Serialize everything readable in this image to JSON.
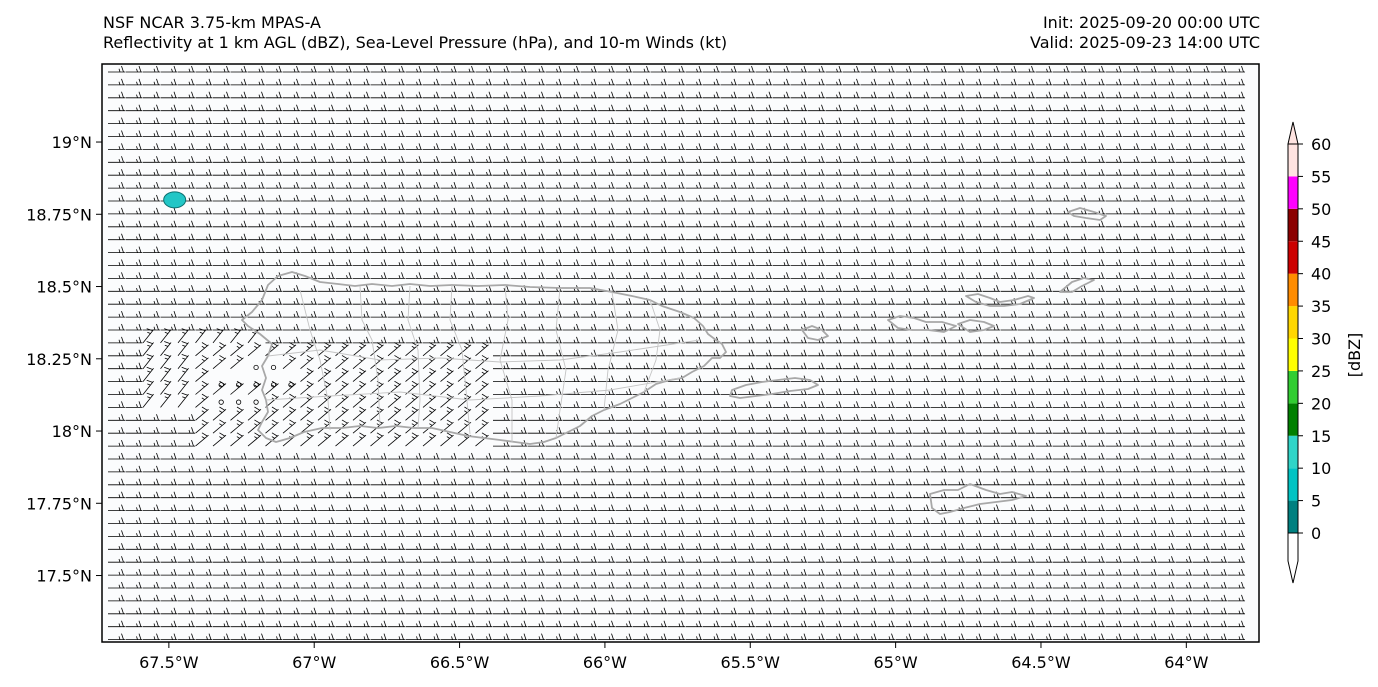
{
  "title": {
    "left_line1": "NSF NCAR 3.75-km MPAS-A",
    "left_line2": "Reflectivity at 1 km AGL (dBZ), Sea-Level Pressure (hPa), and 10-m Winds (kt)",
    "right_line1": "Init: 2025-09-20 00:00 UTC",
    "right_line2": "Valid: 2025-09-23 14:00 UTC"
  },
  "map": {
    "lon_range": [
      -67.73,
      -63.75
    ],
    "lat_range": [
      17.27,
      19.27
    ],
    "x_ticks": [
      {
        "value": -67.5,
        "label": "67.5°W"
      },
      {
        "value": -67.0,
        "label": "67°W"
      },
      {
        "value": -66.5,
        "label": "66.5°W"
      },
      {
        "value": -66.0,
        "label": "66°W"
      },
      {
        "value": -65.5,
        "label": "65.5°W"
      },
      {
        "value": -65.0,
        "label": "65°W"
      },
      {
        "value": -64.5,
        "label": "64.5°W"
      },
      {
        "value": -64.0,
        "label": "64°W"
      }
    ],
    "y_ticks": [
      {
        "value": 19.0,
        "label": "19°N"
      },
      {
        "value": 18.75,
        "label": "18.75°N"
      },
      {
        "value": 18.5,
        "label": "18.5°N"
      },
      {
        "value": 18.25,
        "label": "18.25°N"
      },
      {
        "value": 18.0,
        "label": "18°N"
      },
      {
        "value": 17.75,
        "label": "17.75°N"
      },
      {
        "value": 17.5,
        "label": "17.5°N"
      }
    ],
    "background_color": "#fbfcfd",
    "coastline_color": "#a8a8a8",
    "barb_color": "#000000",
    "prevailing_wind": {
      "from": "E",
      "speed_kt": 15
    },
    "calm_points": [
      {
        "lon": -67.32,
        "lat": 18.16
      },
      {
        "lon": -67.26,
        "lat": 18.16
      },
      {
        "lon": -67.2,
        "lat": 18.16
      },
      {
        "lon": -67.14,
        "lat": 18.16
      },
      {
        "lon": -67.08,
        "lat": 18.16
      },
      {
        "lon": -67.2,
        "lat": 18.22
      },
      {
        "lon": -67.14,
        "lat": 18.22
      },
      {
        "lon": -67.32,
        "lat": 18.1
      },
      {
        "lon": -67.26,
        "lat": 18.1
      },
      {
        "lon": -67.2,
        "lat": 18.1
      }
    ],
    "echo": {
      "lon": -67.48,
      "lat": 18.8,
      "dbz": 12,
      "color": "#22c6c6"
    }
  },
  "colorbar": {
    "label": "[dBZ]",
    "ticks": [
      "0",
      "5",
      "10",
      "15",
      "20",
      "25",
      "30",
      "35",
      "40",
      "45",
      "50",
      "55",
      "60"
    ],
    "colors": [
      "#008080",
      "#00c3c3",
      "#30d5c8",
      "#008000",
      "#32cd32",
      "#ffff00",
      "#ffd700",
      "#ff8c00",
      "#cc0000",
      "#8b0000",
      "#ff00ff",
      "#ffe4e1"
    ],
    "under_color": "#ffffff",
    "over_color": "#ffe4e1"
  }
}
